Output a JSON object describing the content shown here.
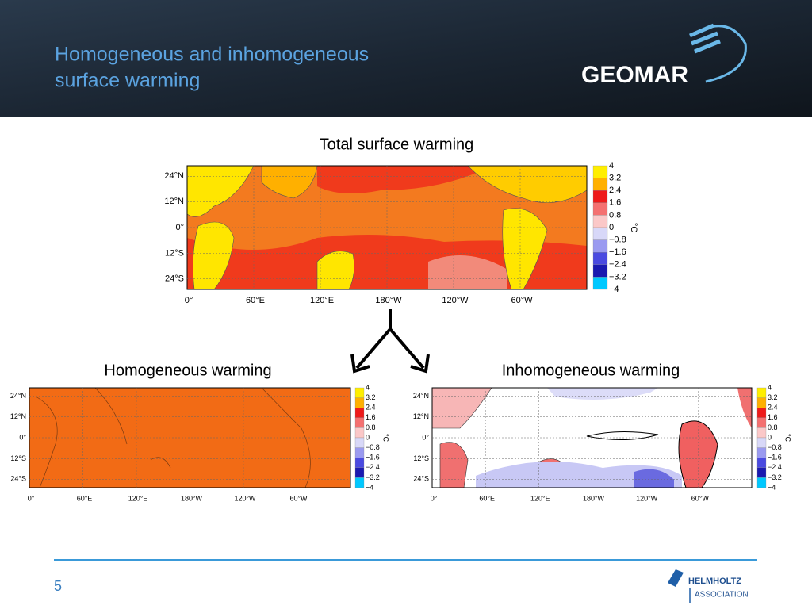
{
  "header": {
    "title_lines": [
      "Homogeneous and inhomogeneous",
      "surface warming"
    ],
    "logo": "GEOMAR"
  },
  "maps": [
    {
      "title": "Total surface warming",
      "lat_labels": [
        "24°N",
        "12°N",
        "0°",
        "12°S",
        "24°S"
      ],
      "lon_labels": [
        "0°",
        "60°E",
        "120°E",
        "180°W",
        "120°W",
        "60°W"
      ],
      "colorbar_labels": [
        "4",
        "3.2",
        "2.4",
        "1.6",
        "0.8",
        "0",
        "−0.8",
        "−1.6",
        "−2.4",
        "−3.2",
        "−4"
      ],
      "unit": "°C"
    },
    {
      "title": "Homogeneous warming",
      "lat_labels": [
        "24°N",
        "12°N",
        "0°",
        "12°S",
        "24°S"
      ],
      "lon_labels": [
        "0°",
        "60°E",
        "120°E",
        "180°W",
        "120°W",
        "60°W"
      ],
      "colorbar_labels": [
        "4",
        "3.2",
        "2.4",
        "1.6",
        "0.8",
        "0",
        "−0.8",
        "−1.6",
        "−2.4",
        "−3.2",
        "−4"
      ],
      "unit": "°C"
    },
    {
      "title": "Inhomogeneous warming",
      "lat_labels": [
        "24°N",
        "12°N",
        "0°",
        "12°S",
        "24°S"
      ],
      "lon_labels": [
        "0°",
        "60°E",
        "120°E",
        "180°W",
        "120°W",
        "60°W"
      ],
      "colorbar_labels": [
        "4",
        "3.2",
        "2.4",
        "1.6",
        "0.8",
        "0",
        "−0.8",
        "−1.6",
        "−2.4",
        "−3.2",
        "−4"
      ],
      "unit": "°C"
    }
  ],
  "footer": {
    "page_number": "5",
    "logo_line1": "HELMHOLTZ",
    "logo_line2": "ASSOCIATION"
  }
}
